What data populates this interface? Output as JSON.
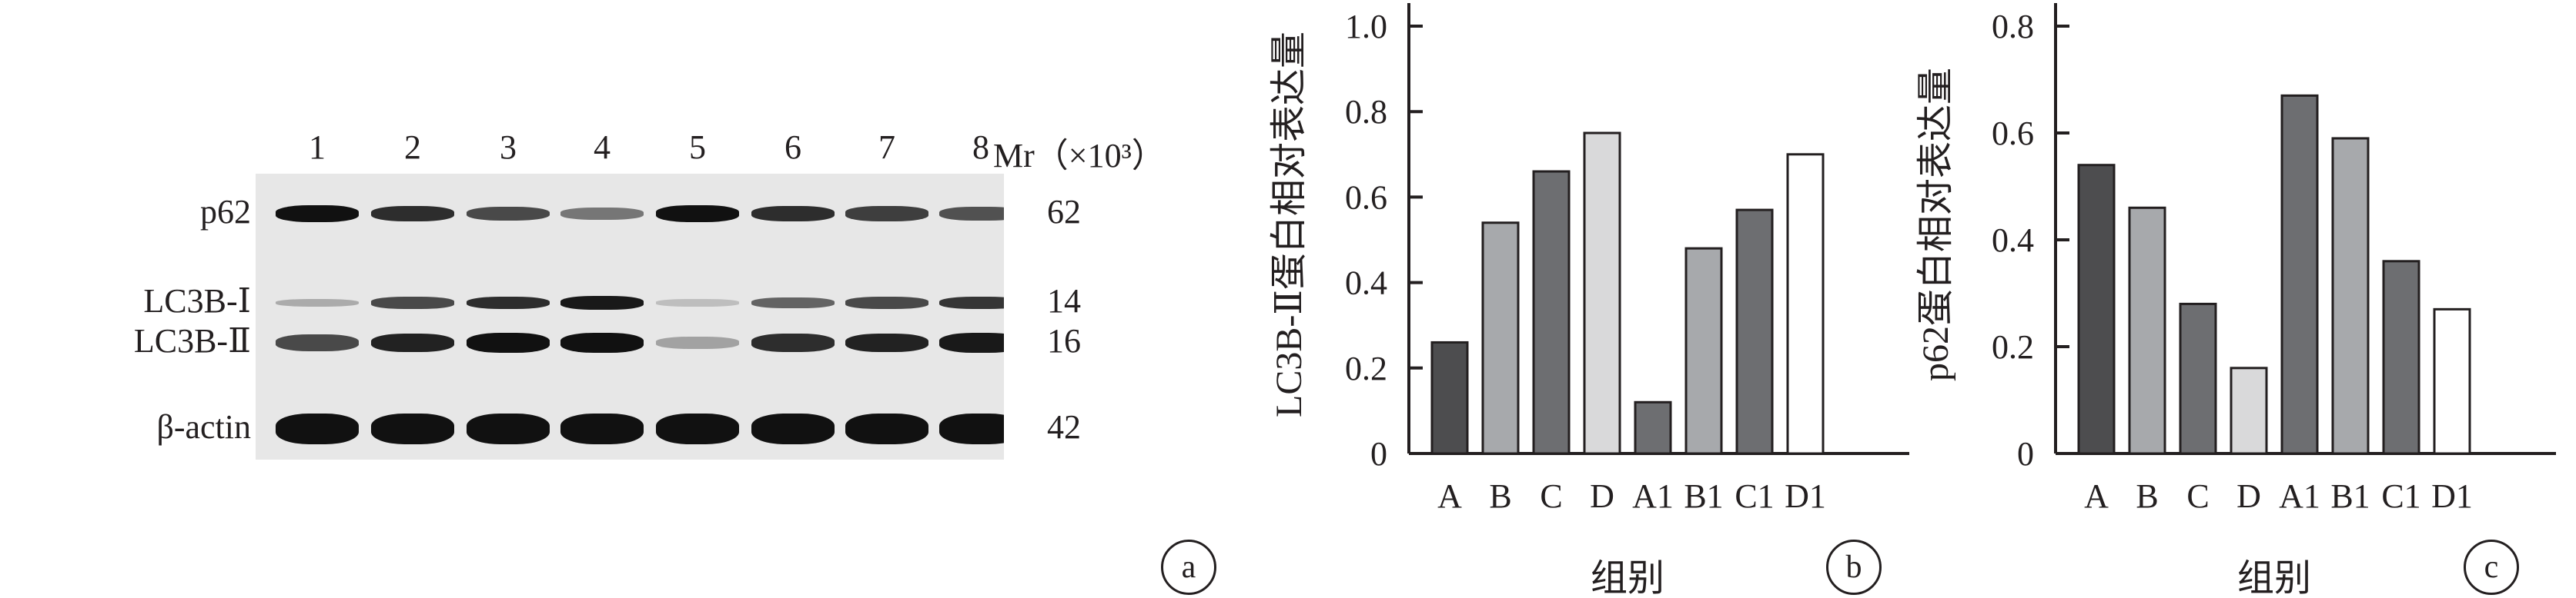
{
  "blot": {
    "lanes": [
      "1",
      "2",
      "3",
      "4",
      "5",
      "6",
      "7",
      "8"
    ],
    "mr_label": "Mr（×10³）",
    "rows": [
      {
        "label": "p62",
        "mw": "62",
        "intensity": [
          1,
          0.85,
          0.7,
          0.45,
          1,
          0.85,
          0.75,
          0.65
        ]
      },
      {
        "label": "LC3B-Ⅰ",
        "mw": "14",
        "intensity": [
          0.15,
          0.7,
          0.85,
          0.95,
          0.05,
          0.55,
          0.7,
          0.8
        ]
      },
      {
        "label": "LC3B-Ⅱ",
        "mw": "16",
        "intensity": [
          0.7,
          0.9,
          1,
          1,
          0.2,
          0.85,
          0.9,
          0.95
        ]
      },
      {
        "label": "β-actin",
        "mw": "42",
        "intensity": [
          1,
          1,
          1,
          1,
          1,
          1,
          1,
          1
        ]
      }
    ]
  },
  "panels": {
    "a": "a",
    "b": "b",
    "c": "c"
  },
  "chart_data": [
    {
      "type": "bar",
      "categories": [
        "A",
        "B",
        "C",
        "D",
        "A1",
        "B1",
        "C1",
        "D1"
      ],
      "values": [
        0.26,
        0.54,
        0.66,
        0.75,
        0.12,
        0.48,
        0.57,
        0.7
      ],
      "ylabel": "LC3B-Ⅱ蛋白相对表达量",
      "xlabel": "组别",
      "ylim": [
        0,
        1.0
      ],
      "yticks": [
        "0",
        "0.2",
        "0.4",
        "0.6",
        "0.8",
        "1.0"
      ],
      "colors": [
        "#4d4d4f",
        "#a7a9ac",
        "#6d6e71",
        "#d9d9da",
        "#6d6e71",
        "#a7a9ac",
        "#6d6e71",
        "#ffffff"
      ]
    },
    {
      "type": "bar",
      "categories": [
        "A",
        "B",
        "C",
        "D",
        "A1",
        "B1",
        "C1",
        "D1"
      ],
      "values": [
        0.54,
        0.46,
        0.28,
        0.16,
        0.67,
        0.59,
        0.36,
        0.27
      ],
      "ylabel": "p62蛋白相对表达量",
      "xlabel": "组别",
      "ylim": [
        0,
        0.8
      ],
      "yticks": [
        "0",
        "0.2",
        "0.4",
        "0.6",
        "0.8"
      ],
      "colors": [
        "#4d4d4f",
        "#a7a9ac",
        "#6d6e71",
        "#d9d9da",
        "#6d6e71",
        "#a7a9ac",
        "#6d6e71",
        "#ffffff"
      ]
    }
  ]
}
